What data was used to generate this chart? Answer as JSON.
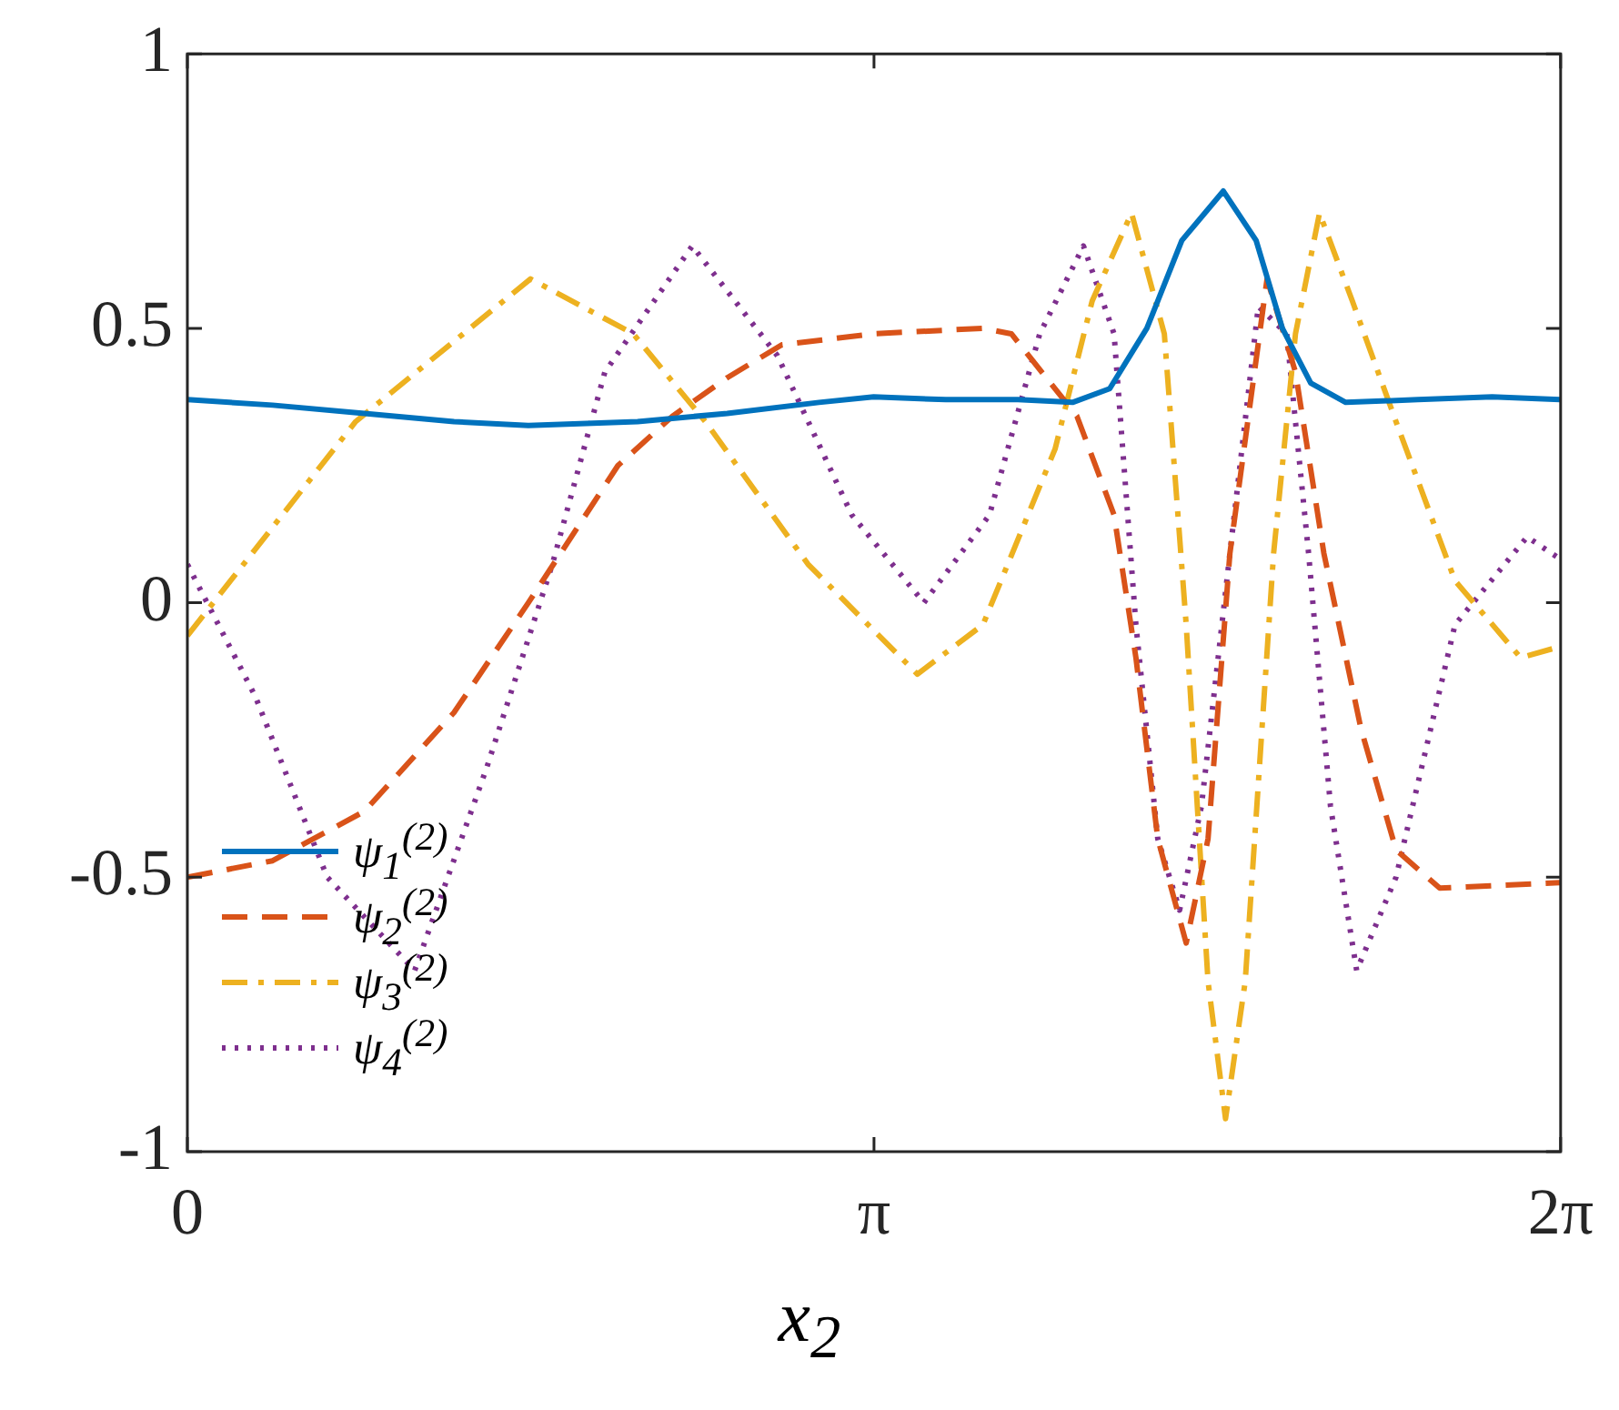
{
  "chart_data": {
    "type": "line",
    "xlabel": "x$_{2}$",
    "xlim": [
      0,
      6.2832
    ],
    "xticks": [
      {
        "value": 0,
        "label": "0"
      },
      {
        "value": 3.1416,
        "label": "π"
      },
      {
        "value": 6.2832,
        "label": "2π"
      }
    ],
    "ylim": [
      -1,
      1
    ],
    "yticks": [
      -1,
      -0.5,
      0,
      0.5,
      1
    ],
    "grid": false,
    "legend": "bottom left",
    "marker": "none",
    "series": [
      {
        "name": "ψ$_{1}$$^{(2)}$",
        "color": "#0072bd",
        "line_style": "solid",
        "x": [
          0,
          0.39,
          0.81,
          1.22,
          1.56,
          2.06,
          2.47,
          2.89,
          3.14,
          3.47,
          3.8,
          4.05,
          4.22,
          4.39,
          4.55,
          4.74,
          4.89,
          5.01,
          5.14,
          5.3,
          5.63,
          5.97,
          6.28
        ],
        "values": [
          0.37,
          0.36,
          0.345,
          0.33,
          0.323,
          0.33,
          0.345,
          0.365,
          0.375,
          0.37,
          0.37,
          0.365,
          0.39,
          0.5,
          0.66,
          0.75,
          0.66,
          0.5,
          0.4,
          0.365,
          0.37,
          0.375,
          0.37
        ]
      },
      {
        "name": "ψ$_{2}$$^{(2)}$",
        "color": "#d95319",
        "line_style": "dashed",
        "x": [
          0,
          0.39,
          0.81,
          1.22,
          1.56,
          1.97,
          2.22,
          2.47,
          2.72,
          3.14,
          3.64,
          3.77,
          4.07,
          4.24,
          4.34,
          4.44,
          4.57,
          4.67,
          4.77,
          4.94,
          5.07,
          5.2,
          5.37,
          5.53,
          5.73,
          6.28
        ],
        "values": [
          -0.5,
          -0.47,
          -0.38,
          -0.2,
          0,
          0.25,
          0.34,
          0.41,
          0.47,
          0.49,
          0.5,
          0.49,
          0.34,
          0.16,
          -0.1,
          -0.43,
          -0.62,
          -0.43,
          0.09,
          0.59,
          0.42,
          0.09,
          -0.23,
          -0.45,
          -0.52,
          -0.51
        ]
      },
      {
        "name": "ψ$_{3}$$^{(2)}$",
        "color": "#edb120",
        "line_style": "dashdot",
        "x": [
          0,
          0.77,
          1.57,
          2.04,
          2.37,
          2.84,
          3.34,
          3.64,
          3.97,
          4.14,
          4.32,
          4.47,
          4.57,
          4.67,
          4.75,
          4.84,
          4.97,
          5.07,
          5.18,
          5.33,
          5.53,
          5.8,
          6.1,
          6.28
        ],
        "values": [
          -0.06,
          0.33,
          0.59,
          0.49,
          0.33,
          0.07,
          -0.13,
          -0.04,
          0.28,
          0.55,
          0.71,
          0.49,
          -0.04,
          -0.69,
          -0.94,
          -0.69,
          0.09,
          0.49,
          0.71,
          0.55,
          0.33,
          0.04,
          -0.1,
          -0.08
        ]
      },
      {
        "name": "ψ$_{4}$$^{(2)}$",
        "color": "#7e2f8e",
        "line_style": "dotted",
        "x": [
          0,
          0.31,
          0.64,
          1.04,
          1.37,
          1.67,
          1.91,
          2.31,
          2.7,
          3.04,
          3.37,
          3.67,
          3.9,
          4.1,
          4.24,
          4.34,
          4.44,
          4.54,
          4.64,
          4.77,
          4.9,
          5.03,
          5.13,
          5.23,
          5.35,
          5.53,
          5.8,
          6.13,
          6.28
        ],
        "values": [
          0.07,
          -0.17,
          -0.5,
          -0.67,
          -0.3,
          0.07,
          0.42,
          0.65,
          0.45,
          0.16,
          0,
          0.16,
          0.49,
          0.65,
          0.49,
          -0.04,
          -0.43,
          -0.56,
          -0.37,
          0.09,
          0.54,
          0.49,
          0.09,
          -0.37,
          -0.67,
          -0.5,
          -0.04,
          0.12,
          0.08
        ]
      }
    ]
  }
}
